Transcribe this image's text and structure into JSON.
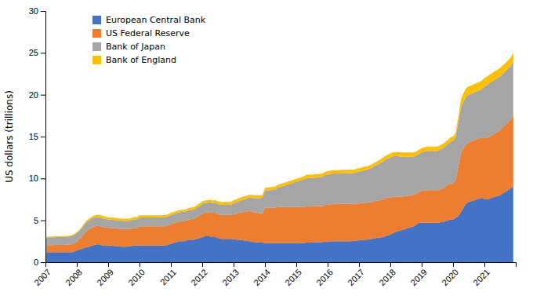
{
  "chart_data": {
    "type": "area",
    "stacked": true,
    "ylabel": "US dollars (trillions)",
    "xlim": [
      2007.0,
      2022.0
    ],
    "xticks": [
      2007,
      2008,
      2009,
      2010,
      2011,
      2012,
      2013,
      2014,
      2015,
      2016,
      2017,
      2018,
      2019,
      2020,
      2021
    ],
    "ylim": [
      0,
      30
    ],
    "yticks": [
      0,
      5,
      10,
      15,
      20,
      25,
      30
    ],
    "grid": false,
    "legend": "upper left",
    "x": [
      2007.0,
      2007.08,
      2007.17,
      2007.25,
      2007.33,
      2007.42,
      2007.5,
      2007.58,
      2007.67,
      2007.75,
      2007.83,
      2007.92,
      2008.0,
      2008.08,
      2008.17,
      2008.25,
      2008.33,
      2008.42,
      2008.5,
      2008.58,
      2008.67,
      2008.75,
      2008.83,
      2008.92,
      2009.0,
      2009.08,
      2009.17,
      2009.25,
      2009.33,
      2009.42,
      2009.5,
      2009.58,
      2009.67,
      2009.75,
      2009.83,
      2009.92,
      2010.0,
      2010.08,
      2010.17,
      2010.25,
      2010.33,
      2010.42,
      2010.5,
      2010.58,
      2010.67,
      2010.75,
      2010.83,
      2010.92,
      2011.0,
      2011.08,
      2011.17,
      2011.25,
      2011.33,
      2011.42,
      2011.5,
      2011.58,
      2011.67,
      2011.75,
      2011.83,
      2011.92,
      2012.0,
      2012.08,
      2012.17,
      2012.25,
      2012.33,
      2012.42,
      2012.5,
      2012.58,
      2012.67,
      2012.75,
      2012.83,
      2012.92,
      2013.0,
      2013.08,
      2013.17,
      2013.25,
      2013.33,
      2013.42,
      2013.5,
      2013.58,
      2013.67,
      2013.75,
      2013.83,
      2013.92,
      2014.0,
      2014.08,
      2014.17,
      2014.25,
      2014.33,
      2014.42,
      2014.5,
      2014.58,
      2014.67,
      2014.75,
      2014.83,
      2014.92,
      2015.0,
      2015.08,
      2015.17,
      2015.25,
      2015.33,
      2015.42,
      2015.5,
      2015.58,
      2015.67,
      2015.75,
      2015.83,
      2015.92,
      2016.0,
      2016.08,
      2016.17,
      2016.25,
      2016.33,
      2016.42,
      2016.5,
      2016.58,
      2016.67,
      2016.75,
      2016.83,
      2016.92,
      2017.0,
      2017.08,
      2017.17,
      2017.25,
      2017.33,
      2017.42,
      2017.5,
      2017.58,
      2017.67,
      2017.75,
      2017.83,
      2017.92,
      2018.0,
      2018.08,
      2018.17,
      2018.25,
      2018.33,
      2018.42,
      2018.5,
      2018.58,
      2018.67,
      2018.75,
      2018.83,
      2018.92,
      2019.0,
      2019.08,
      2019.17,
      2019.25,
      2019.33,
      2019.42,
      2019.5,
      2019.58,
      2019.67,
      2019.75,
      2019.83,
      2019.92,
      2020.0,
      2020.08,
      2020.17,
      2020.25,
      2020.33,
      2020.42,
      2020.5,
      2020.58,
      2020.67,
      2020.75,
      2020.83,
      2020.92,
      2021.0,
      2021.08,
      2021.17,
      2021.25,
      2021.33,
      2021.42,
      2021.5,
      2021.58,
      2021.67,
      2021.75,
      2021.83,
      2021.92
    ],
    "series": [
      {
        "name": "European Central Bank",
        "color": "#4472C4",
        "values": [
          1.2,
          1.2,
          1.2,
          1.2,
          1.2,
          1.2,
          1.2,
          1.2,
          1.2,
          1.2,
          1.2,
          1.3,
          1.4,
          1.5,
          1.6,
          1.7,
          1.8,
          1.9,
          2.0,
          2.1,
          2.15,
          2.1,
          2.0,
          1.95,
          2.0,
          2.0,
          1.95,
          1.95,
          1.9,
          1.85,
          1.85,
          1.85,
          1.9,
          1.95,
          2.0,
          2.0,
          2.0,
          2.0,
          2.0,
          2.0,
          2.0,
          2.0,
          2.0,
          2.0,
          2.0,
          2.0,
          2.0,
          2.1,
          2.2,
          2.3,
          2.4,
          2.5,
          2.5,
          2.5,
          2.6,
          2.7,
          2.7,
          2.7,
          2.8,
          2.9,
          3.0,
          3.1,
          3.1,
          3.1,
          3.0,
          3.0,
          2.9,
          2.8,
          2.8,
          2.8,
          2.8,
          2.8,
          2.75,
          2.7,
          2.7,
          2.65,
          2.6,
          2.55,
          2.5,
          2.45,
          2.4,
          2.4,
          2.35,
          2.35,
          2.3,
          2.3,
          2.3,
          2.3,
          2.3,
          2.3,
          2.3,
          2.3,
          2.3,
          2.3,
          2.3,
          2.3,
          2.3,
          2.3,
          2.3,
          2.3,
          2.35,
          2.35,
          2.35,
          2.4,
          2.4,
          2.4,
          2.4,
          2.45,
          2.45,
          2.5,
          2.5,
          2.5,
          2.5,
          2.5,
          2.5,
          2.5,
          2.5,
          2.5,
          2.55,
          2.6,
          2.6,
          2.65,
          2.7,
          2.7,
          2.75,
          2.8,
          2.85,
          2.9,
          2.95,
          3.0,
          3.1,
          3.2,
          3.3,
          3.5,
          3.6,
          3.7,
          3.8,
          3.9,
          4.0,
          4.1,
          4.2,
          4.3,
          4.5,
          4.7,
          4.7,
          4.7,
          4.7,
          4.7,
          4.7,
          4.7,
          4.7,
          4.75,
          4.8,
          4.9,
          5.0,
          5.1,
          5.1,
          5.3,
          5.5,
          6.0,
          6.5,
          7.0,
          7.2,
          7.3,
          7.4,
          7.5,
          7.6,
          7.7,
          7.5,
          7.5,
          7.6,
          7.7,
          7.8,
          7.9,
          8.0,
          8.2,
          8.4,
          8.6,
          8.8,
          9.0
        ]
      },
      {
        "name": "US Federal Reserve",
        "color": "#ED7D31",
        "values": [
          0.85,
          0.85,
          0.85,
          0.85,
          0.87,
          0.87,
          0.87,
          0.87,
          0.9,
          0.9,
          0.95,
          1.0,
          1.1,
          1.2,
          1.5,
          1.8,
          2.0,
          2.1,
          2.2,
          2.2,
          2.2,
          2.2,
          2.2,
          2.2,
          2.1,
          2.1,
          2.1,
          2.1,
          2.1,
          2.1,
          2.1,
          2.1,
          2.05,
          2.05,
          2.1,
          2.1,
          2.3,
          2.3,
          2.3,
          2.3,
          2.3,
          2.3,
          2.3,
          2.3,
          2.3,
          2.3,
          2.3,
          2.3,
          2.35,
          2.35,
          2.35,
          2.35,
          2.4,
          2.4,
          2.4,
          2.4,
          2.45,
          2.5,
          2.6,
          2.7,
          2.8,
          2.8,
          2.85,
          2.9,
          2.9,
          2.9,
          2.85,
          2.85,
          2.85,
          2.85,
          2.85,
          2.85,
          3.0,
          3.1,
          3.2,
          3.3,
          3.4,
          3.5,
          3.6,
          3.6,
          3.55,
          3.5,
          3.5,
          3.5,
          4.2,
          4.2,
          4.2,
          4.2,
          4.2,
          4.3,
          4.3,
          4.3,
          4.3,
          4.3,
          4.3,
          4.3,
          4.3,
          4.3,
          4.3,
          4.3,
          4.3,
          4.3,
          4.3,
          4.3,
          4.3,
          4.3,
          4.3,
          4.4,
          4.4,
          4.4,
          4.45,
          4.45,
          4.45,
          4.45,
          4.45,
          4.45,
          4.45,
          4.45,
          4.4,
          4.4,
          4.4,
          4.4,
          4.4,
          4.4,
          4.4,
          4.4,
          4.45,
          4.45,
          4.45,
          4.5,
          4.5,
          4.5,
          4.4,
          4.3,
          4.2,
          4.1,
          4.0,
          3.95,
          3.9,
          3.85,
          3.8,
          3.75,
          3.75,
          3.75,
          3.8,
          3.85,
          3.9,
          3.9,
          3.9,
          3.9,
          3.9,
          3.95,
          4.0,
          4.1,
          4.2,
          4.3,
          4.3,
          4.5,
          6.0,
          7.0,
          7.1,
          7.1,
          7.1,
          7.1,
          7.15,
          7.2,
          7.2,
          7.2,
          7.3,
          7.35,
          7.4,
          7.5,
          7.6,
          7.7,
          7.8,
          7.9,
          8.0,
          8.1,
          8.2,
          8.5
        ]
      },
      {
        "name": "Bank of Japan",
        "color": "#A5A5A5",
        "values": [
          0.9,
          0.9,
          0.92,
          0.93,
          0.93,
          0.94,
          0.95,
          0.95,
          0.95,
          0.96,
          0.97,
          0.98,
          1.0,
          1.02,
          1.04,
          1.05,
          1.05,
          1.06,
          1.07,
          1.07,
          1.07,
          1.05,
          1.02,
          1.0,
          1.0,
          1.0,
          1.0,
          1.0,
          1.0,
          1.0,
          1.0,
          1.0,
          1.0,
          1.02,
          1.03,
          1.04,
          1.05,
          1.05,
          1.05,
          1.05,
          1.05,
          1.05,
          1.05,
          1.06,
          1.06,
          1.07,
          1.07,
          1.08,
          1.1,
          1.1,
          1.1,
          1.1,
          1.1,
          1.1,
          1.1,
          1.1,
          1.1,
          1.1,
          1.12,
          1.14,
          1.15,
          1.15,
          1.15,
          1.15,
          1.15,
          1.2,
          1.2,
          1.2,
          1.2,
          1.2,
          1.2,
          1.2,
          1.3,
          1.35,
          1.4,
          1.45,
          1.5,
          1.55,
          1.6,
          1.65,
          1.7,
          1.75,
          1.8,
          1.85,
          2.0,
          2.05,
          2.1,
          2.15,
          2.2,
          2.3,
          2.4,
          2.5,
          2.6,
          2.7,
          2.8,
          2.9,
          3.0,
          3.1,
          3.2,
          3.3,
          3.4,
          3.4,
          3.4,
          3.4,
          3.4,
          3.45,
          3.5,
          3.55,
          3.6,
          3.65,
          3.65,
          3.65,
          3.65,
          3.65,
          3.7,
          3.7,
          3.7,
          3.7,
          3.7,
          3.75,
          3.8,
          3.85,
          3.9,
          3.95,
          4.0,
          4.1,
          4.2,
          4.3,
          4.4,
          4.5,
          4.6,
          4.7,
          4.8,
          4.85,
          4.85,
          4.85,
          4.8,
          4.75,
          4.7,
          4.65,
          4.6,
          4.55,
          4.5,
          4.5,
          4.6,
          4.65,
          4.7,
          4.7,
          4.7,
          4.7,
          4.7,
          4.75,
          4.8,
          4.85,
          4.9,
          5.0,
          5.1,
          5.1,
          5.2,
          5.5,
          5.6,
          5.7,
          5.7,
          5.7,
          5.7,
          5.7,
          5.7,
          5.8,
          6.2,
          6.3,
          6.4,
          6.4,
          6.4,
          6.4,
          6.4,
          6.4,
          6.4,
          6.4,
          6.4,
          6.5
        ]
      },
      {
        "name": "Bank of England",
        "color": "#FFC000",
        "values": [
          0.1,
          0.1,
          0.1,
          0.1,
          0.1,
          0.1,
          0.1,
          0.1,
          0.1,
          0.1,
          0.1,
          0.1,
          0.1,
          0.12,
          0.14,
          0.16,
          0.18,
          0.2,
          0.22,
          0.24,
          0.26,
          0.28,
          0.3,
          0.28,
          0.25,
          0.25,
          0.25,
          0.25,
          0.25,
          0.25,
          0.25,
          0.25,
          0.25,
          0.25,
          0.25,
          0.25,
          0.25,
          0.25,
          0.25,
          0.25,
          0.25,
          0.25,
          0.25,
          0.25,
          0.25,
          0.25,
          0.25,
          0.25,
          0.25,
          0.25,
          0.25,
          0.25,
          0.25,
          0.25,
          0.25,
          0.3,
          0.3,
          0.3,
          0.3,
          0.3,
          0.3,
          0.3,
          0.3,
          0.3,
          0.3,
          0.3,
          0.35,
          0.35,
          0.35,
          0.35,
          0.35,
          0.35,
          0.35,
          0.35,
          0.35,
          0.35,
          0.35,
          0.35,
          0.35,
          0.35,
          0.35,
          0.35,
          0.35,
          0.35,
          0.35,
          0.35,
          0.35,
          0.35,
          0.35,
          0.35,
          0.35,
          0.35,
          0.35,
          0.35,
          0.35,
          0.35,
          0.35,
          0.35,
          0.35,
          0.4,
          0.4,
          0.4,
          0.4,
          0.4,
          0.4,
          0.4,
          0.4,
          0.4,
          0.4,
          0.4,
          0.4,
          0.4,
          0.4,
          0.4,
          0.4,
          0.4,
          0.4,
          0.4,
          0.4,
          0.4,
          0.4,
          0.4,
          0.4,
          0.4,
          0.4,
          0.4,
          0.4,
          0.4,
          0.45,
          0.45,
          0.45,
          0.45,
          0.45,
          0.5,
          0.5,
          0.5,
          0.5,
          0.5,
          0.5,
          0.5,
          0.5,
          0.5,
          0.5,
          0.5,
          0.5,
          0.5,
          0.5,
          0.5,
          0.5,
          0.5,
          0.5,
          0.5,
          0.5,
          0.5,
          0.5,
          0.5,
          0.5,
          0.55,
          0.7,
          0.9,
          1.0,
          1.0,
          1.0,
          1.0,
          1.0,
          1.0,
          1.0,
          1.0,
          1.0,
          1.0,
          1.0,
          1.0,
          1.0,
          1.0,
          1.0,
          1.0,
          1.0,
          1.0,
          1.0,
          1.0
        ]
      }
    ]
  }
}
